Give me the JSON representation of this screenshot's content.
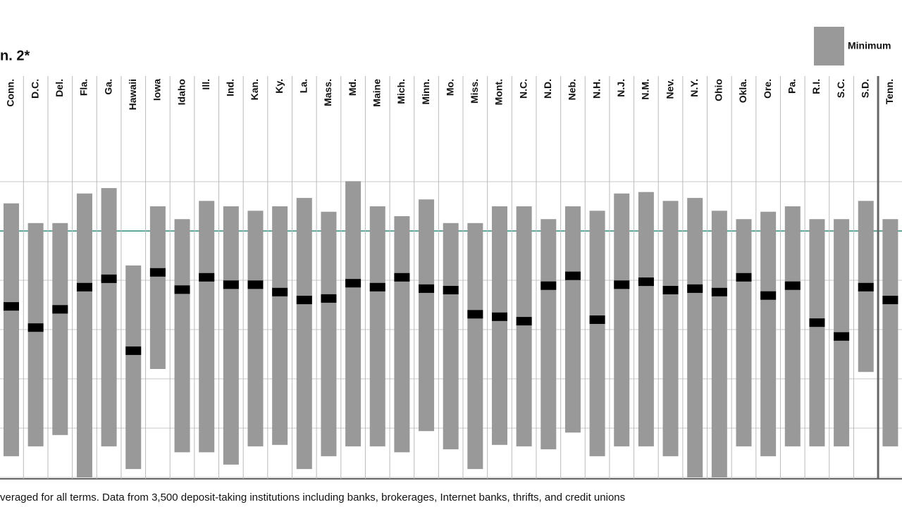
{
  "chart_data": {
    "type": "range",
    "title": "n. 2*",
    "legend_label": "Minimum",
    "footnote": "veraged for all terms. Data from 3,500 deposit-taking institutions including banks, brokerages, Internet banks, thrifts, and credit unions",
    "categories": [
      "Conn.",
      "D.C.",
      "Del.",
      "Fla.",
      "Ga.",
      "Hawaii",
      "Iowa",
      "Idaho",
      "Ill.",
      "Ind.",
      "Kan.",
      "Ky.",
      "La.",
      "Mass.",
      "Md.",
      "Maine",
      "Mich.",
      "Minn.",
      "Mo.",
      "Miss.",
      "Mont.",
      "N.C.",
      "N.D.",
      "Neb.",
      "N.H.",
      "N.J.",
      "N.M.",
      "Nev.",
      "N.Y.",
      "Ohio",
      "Okla.",
      "Ore.",
      "Pa.",
      "R.I.",
      "S.C.",
      "S.D.",
      "Tenn."
    ],
    "high": [
      5.56,
      5.16,
      5.16,
      5.76,
      5.87,
      4.3,
      5.5,
      5.24,
      5.61,
      5.5,
      5.41,
      5.5,
      5.67,
      5.39,
      6.01,
      5.5,
      5.3,
      5.64,
      5.16,
      5.16,
      5.5,
      5.5,
      5.24,
      5.5,
      5.41,
      5.76,
      5.79,
      5.61,
      5.67,
      5.41,
      5.24,
      5.39,
      5.5,
      5.24,
      5.24,
      5.61,
      5.24
    ],
    "low": [
      0.43,
      0.63,
      0.86,
      0,
      0.63,
      0.17,
      2.2,
      0.51,
      0.51,
      0.26,
      0.63,
      0.66,
      0.17,
      0.43,
      0.63,
      0.63,
      0.51,
      0.94,
      0.57,
      0.17,
      0.66,
      0.63,
      0.57,
      0.91,
      0.43,
      0.63,
      0.63,
      0.43,
      0,
      0,
      0.63,
      0.43,
      0.63,
      0.63,
      0.63,
      2.14,
      0.63
    ],
    "average": [
      3.47,
      3.04,
      3.41,
      3.86,
      4.03,
      2.57,
      4.16,
      3.81,
      4.06,
      3.91,
      3.91,
      3.76,
      3.6,
      3.63,
      3.94,
      3.86,
      4.06,
      3.83,
      3.8,
      3.31,
      3.26,
      3.17,
      3.89,
      4.09,
      3.2,
      3.91,
      3.97,
      3.8,
      3.83,
      3.76,
      4.06,
      3.69,
      3.89,
      3.14,
      2.86,
      3.86,
      3.6
    ],
    "range_color": "#999999",
    "average_color": "#000000",
    "reference_line": 5,
    "reference_color": "#2e8b7a",
    "ylim": [
      0,
      6
    ],
    "yticks": [
      0,
      1,
      2,
      3,
      4,
      5,
      6
    ],
    "grid": true
  }
}
